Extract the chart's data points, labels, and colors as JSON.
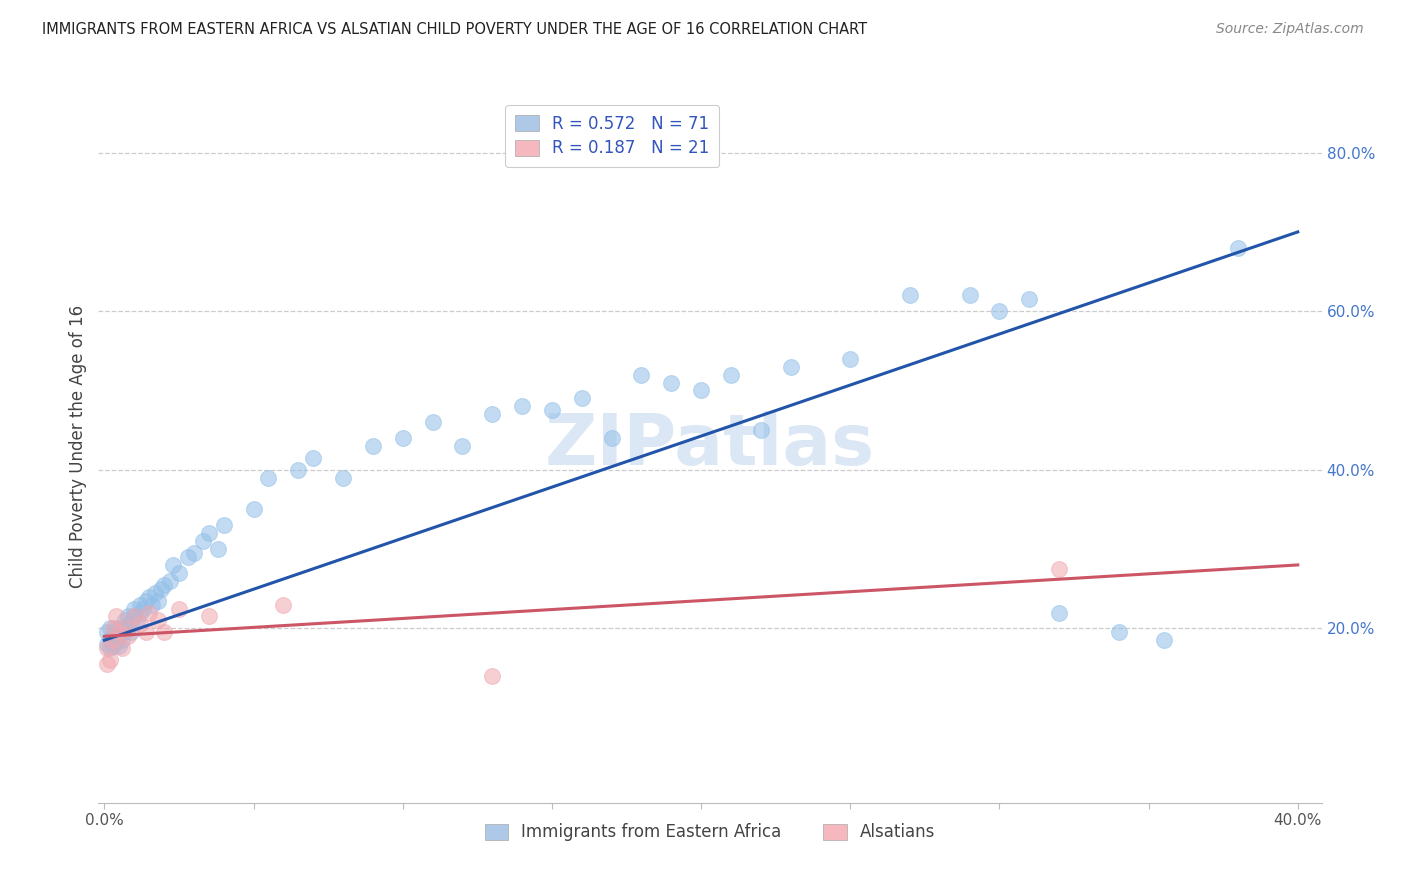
{
  "title": "IMMIGRANTS FROM EASTERN AFRICA VS ALSATIAN CHILD POVERTY UNDER THE AGE OF 16 CORRELATION CHART",
  "source": "Source: ZipAtlas.com",
  "ylabel": "Child Poverty Under the Age of 16",
  "xlim": [
    -0.002,
    0.408
  ],
  "ylim": [
    -0.02,
    0.88
  ],
  "xtick_positions": [
    0.0,
    0.05,
    0.1,
    0.15,
    0.2,
    0.25,
    0.3,
    0.35,
    0.4
  ],
  "xtick_labels": [
    "0.0%",
    "",
    "",
    "",
    "",
    "",
    "",
    "",
    "40.0%"
  ],
  "ytick_positions": [
    0.2,
    0.4,
    0.6,
    0.8
  ],
  "ytick_labels": [
    "20.0%",
    "40.0%",
    "60.0%",
    "80.0%"
  ],
  "legend1_label": "R = 0.572   N = 71",
  "legend2_label": "R = 0.187   N = 21",
  "legend_bottom1": "Immigrants from Eastern Africa",
  "legend_bottom2": "Alsatians",
  "blue_color": "#92bfe8",
  "pink_color": "#f0a8b0",
  "blue_line_color": "#2255aa",
  "pink_line_color": "#cc5566",
  "watermark": "ZIPatlas",
  "watermark_color": "#ccddf0",
  "background_color": "#ffffff",
  "grid_color": "#cccccc",
  "blue_x": [
    0.001,
    0.001,
    0.002,
    0.002,
    0.002,
    0.003,
    0.003,
    0.004,
    0.004,
    0.005,
    0.005,
    0.005,
    0.006,
    0.006,
    0.007,
    0.007,
    0.008,
    0.008,
    0.009,
    0.009,
    0.01,
    0.01,
    0.011,
    0.012,
    0.012,
    0.013,
    0.014,
    0.015,
    0.016,
    0.017,
    0.018,
    0.019,
    0.02,
    0.022,
    0.023,
    0.025,
    0.028,
    0.03,
    0.033,
    0.035,
    0.038,
    0.04,
    0.05,
    0.055,
    0.065,
    0.07,
    0.08,
    0.09,
    0.1,
    0.11,
    0.12,
    0.13,
    0.14,
    0.15,
    0.16,
    0.17,
    0.18,
    0.19,
    0.2,
    0.21,
    0.22,
    0.23,
    0.25,
    0.27,
    0.29,
    0.3,
    0.31,
    0.32,
    0.34,
    0.355,
    0.38
  ],
  "blue_y": [
    0.195,
    0.18,
    0.175,
    0.185,
    0.2,
    0.19,
    0.178,
    0.183,
    0.2,
    0.195,
    0.178,
    0.19,
    0.2,
    0.185,
    0.195,
    0.21,
    0.2,
    0.215,
    0.195,
    0.208,
    0.215,
    0.225,
    0.21,
    0.22,
    0.23,
    0.225,
    0.235,
    0.24,
    0.23,
    0.245,
    0.235,
    0.25,
    0.255,
    0.26,
    0.28,
    0.27,
    0.29,
    0.295,
    0.31,
    0.32,
    0.3,
    0.33,
    0.35,
    0.39,
    0.4,
    0.415,
    0.39,
    0.43,
    0.44,
    0.46,
    0.43,
    0.47,
    0.48,
    0.475,
    0.49,
    0.44,
    0.52,
    0.51,
    0.5,
    0.52,
    0.45,
    0.53,
    0.54,
    0.62,
    0.62,
    0.6,
    0.615,
    0.22,
    0.195,
    0.185,
    0.68
  ],
  "pink_x": [
    0.001,
    0.001,
    0.002,
    0.003,
    0.003,
    0.004,
    0.005,
    0.006,
    0.007,
    0.008,
    0.01,
    0.012,
    0.014,
    0.015,
    0.018,
    0.02,
    0.025,
    0.035,
    0.06,
    0.13,
    0.32
  ],
  "pink_y": [
    0.155,
    0.175,
    0.16,
    0.2,
    0.185,
    0.215,
    0.195,
    0.175,
    0.2,
    0.19,
    0.215,
    0.205,
    0.195,
    0.22,
    0.21,
    0.195,
    0.225,
    0.215,
    0.23,
    0.14,
    0.275
  ],
  "blue_line_x0": 0.0,
  "blue_line_x1": 0.4,
  "blue_line_y0": 0.185,
  "blue_line_y1": 0.7,
  "pink_line_x0": 0.0,
  "pink_line_x1": 0.4,
  "pink_line_y0": 0.19,
  "pink_line_y1": 0.28
}
